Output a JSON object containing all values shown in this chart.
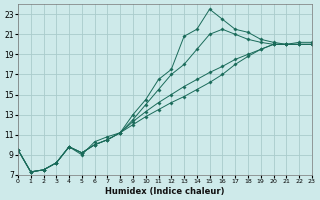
{
  "xlabel": "Humidex (Indice chaleur)",
  "bg_color": "#ceeaea",
  "grid_color": "#aacccc",
  "line_color": "#1a6b5a",
  "xlim": [
    0,
    23
  ],
  "ylim": [
    7,
    24
  ],
  "xtick_labels": [
    "0",
    "1",
    "2",
    "3",
    "4",
    "5",
    "6",
    "7",
    "8",
    "9",
    "10",
    "11",
    "12",
    "13",
    "14",
    "15",
    "16",
    "17",
    "18",
    "19",
    "20",
    "21",
    "22",
    "23"
  ],
  "ytick_vals": [
    7,
    9,
    11,
    13,
    15,
    17,
    19,
    21,
    23
  ],
  "series": [
    [
      9.5,
      7.3,
      7.5,
      8.2,
      9.8,
      9.0,
      10.3,
      10.8,
      11.2,
      13.0,
      14.5,
      16.5,
      17.5,
      20.8,
      21.5,
      23.5,
      22.5,
      21.5,
      21.2,
      20.5,
      20.2,
      20.0,
      20.2,
      20.2
    ],
    [
      9.5,
      7.3,
      7.5,
      8.2,
      9.8,
      9.2,
      10.0,
      10.5,
      11.2,
      12.5,
      14.0,
      15.5,
      17.0,
      18.0,
      19.5,
      21.0,
      21.5,
      21.0,
      20.5,
      20.2,
      20.0,
      20.0,
      20.0,
      20.0
    ],
    [
      9.5,
      7.3,
      7.5,
      8.2,
      9.8,
      9.2,
      10.0,
      10.5,
      11.2,
      12.3,
      13.3,
      14.2,
      15.0,
      15.8,
      16.5,
      17.2,
      17.8,
      18.5,
      19.0,
      19.5,
      20.0,
      20.0,
      20.0,
      20.0
    ],
    [
      9.5,
      7.3,
      7.5,
      8.2,
      9.8,
      9.2,
      10.0,
      10.5,
      11.2,
      12.0,
      12.8,
      13.5,
      14.2,
      14.8,
      15.5,
      16.2,
      17.0,
      18.0,
      18.8,
      19.5,
      20.0,
      20.0,
      20.0,
      20.0
    ]
  ]
}
